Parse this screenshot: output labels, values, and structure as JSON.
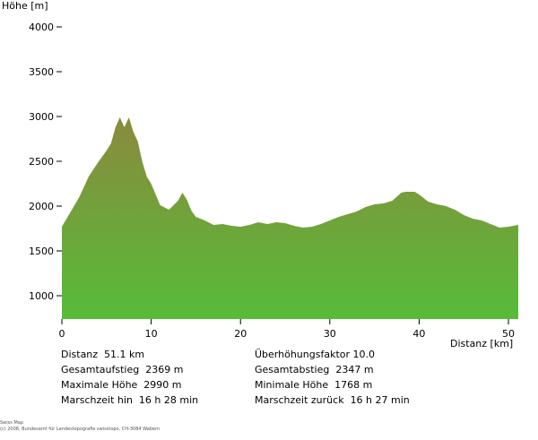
{
  "chart_data": {
    "type": "area",
    "ylabel": "Höhe [m]",
    "xlabel": "Distanz [km]",
    "xlim": [
      0,
      51.1
    ],
    "ylim": [
      700,
      4000
    ],
    "yticks": [
      1000,
      1500,
      2000,
      2500,
      3000,
      3500,
      4000
    ],
    "xticks": [
      0,
      10,
      20,
      30,
      40,
      50
    ],
    "fill_top_color": "#8a8a3e",
    "fill_bottom_color": "#56bc38",
    "x": [
      0,
      1,
      2,
      3,
      4,
      5,
      5.5,
      6,
      6.5,
      7,
      7.5,
      8,
      8.5,
      9,
      9.5,
      10,
      11,
      12,
      13,
      13.5,
      14,
      14.5,
      15,
      16,
      17,
      18,
      19,
      20,
      21,
      22,
      23,
      24,
      25,
      26,
      27,
      28,
      29,
      30,
      31,
      32,
      33,
      34,
      35,
      36,
      37,
      38,
      38.5,
      39.5,
      40,
      41,
      42,
      43,
      44,
      45,
      46,
      47,
      48,
      49,
      50,
      51.1
    ],
    "y": [
      1770,
      1940,
      2110,
      2330,
      2480,
      2620,
      2700,
      2880,
      2990,
      2880,
      2990,
      2830,
      2720,
      2500,
      2330,
      2250,
      2010,
      1960,
      2060,
      2150,
      2070,
      1950,
      1880,
      1840,
      1790,
      1800,
      1780,
      1770,
      1790,
      1820,
      1800,
      1820,
      1810,
      1780,
      1760,
      1770,
      1800,
      1840,
      1880,
      1910,
      1940,
      1990,
      2020,
      2030,
      2060,
      2150,
      2160,
      2160,
      2130,
      2050,
      2020,
      2000,
      1960,
      1900,
      1860,
      1840,
      1800,
      1760,
      1770,
      1790
    ]
  },
  "stats": {
    "distance": "Distanz  51.1 km",
    "ascent": "Gesamtaufstieg  2369 m",
    "max_height": "Maximale Höhe  2990 m",
    "time_forward": "Marschzeit hin  16 h 28 min",
    "exaggeration": "Überhöhungsfaktor 10.0",
    "descent": "Gesamtabstieg  2347 m",
    "min_height": "Minimale Höhe  1768 m",
    "time_back": "Marschzeit zurück  16 h 27 min"
  },
  "footer": {
    "line1": "Swiss Map",
    "line2": "(c) 2008, Bundesamt für Landestopografie swisstopo, CH-3084 Wabern"
  }
}
